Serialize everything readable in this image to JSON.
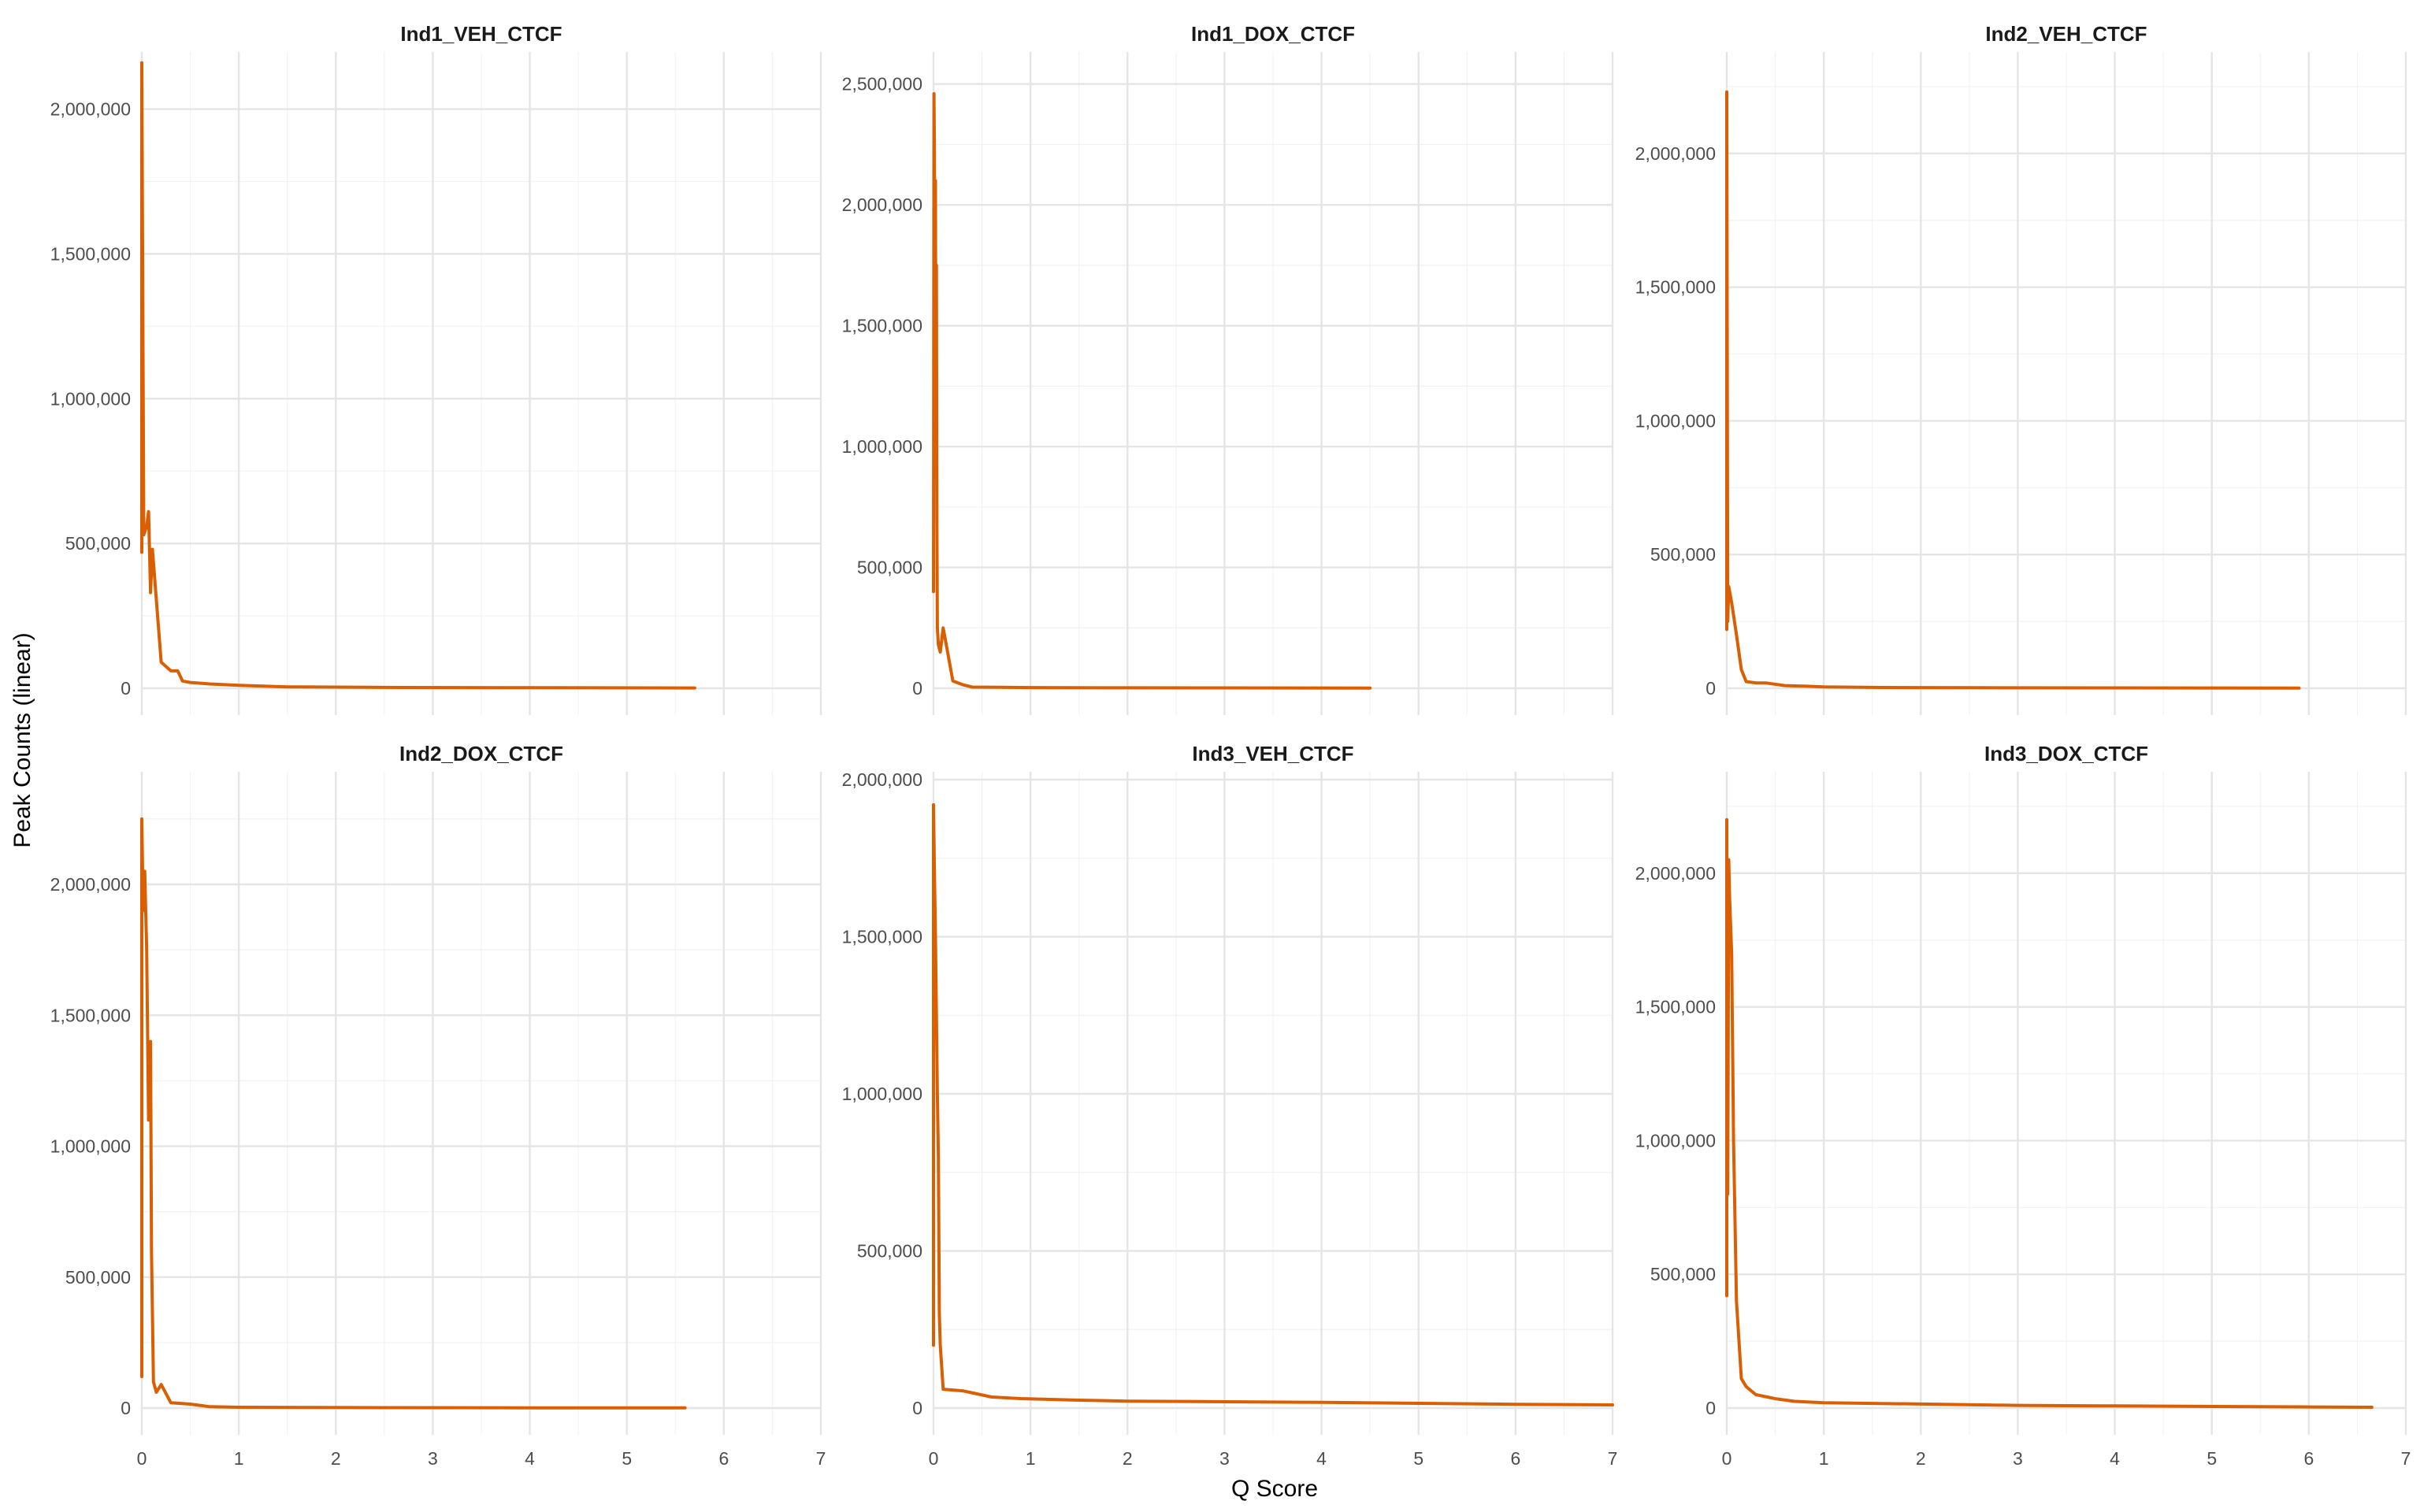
{
  "figure": {
    "xlabel": "Q Score",
    "ylabel": "Peak Counts (linear)",
    "line_color": "#D95F02"
  },
  "chart_data": [
    {
      "type": "line",
      "title": "Ind1_VEH_CTCF",
      "xlim": [
        0,
        7
      ],
      "ylim": [
        0,
        2170000
      ],
      "yticks": [
        0,
        500000,
        1000000,
        1500000,
        2000000
      ],
      "ytick_labels": [
        "0",
        "500,000",
        "1,000,000",
        "1,500,000",
        "2,000,000"
      ],
      "xticks": [
        0,
        1,
        2,
        3,
        4,
        5,
        6,
        7
      ],
      "show_x_tick_labels": false,
      "x": [
        0,
        0,
        0.02,
        0.05,
        0.07,
        0.09,
        0.11,
        0.2,
        0.3,
        0.37,
        0.42,
        0.5,
        0.7,
        1.0,
        1.5,
        2.5,
        4.0,
        5.7
      ],
      "y": [
        470000,
        2160000,
        530000,
        560000,
        610000,
        330000,
        480000,
        90000,
        60000,
        60000,
        25000,
        20000,
        15000,
        10000,
        5000,
        3000,
        2000,
        1000
      ]
    },
    {
      "type": "line",
      "title": "Ind1_DOX_CTCF",
      "xlim": [
        0,
        7
      ],
      "ylim": [
        0,
        2600000
      ],
      "yticks": [
        0,
        500000,
        1000000,
        1500000,
        2000000,
        2500000
      ],
      "ytick_labels": [
        "0",
        "500,000",
        "1,000,000",
        "1,500,000",
        "2,000,000",
        "2,500,000"
      ],
      "xticks": [
        0,
        1,
        2,
        3,
        4,
        5,
        6,
        7
      ],
      "show_x_tick_labels": false,
      "x": [
        0,
        0.005,
        0.01,
        0.015,
        0.02,
        0.025,
        0.03,
        0.035,
        0.04,
        0.05,
        0.07,
        0.1,
        0.2,
        0.3,
        0.4,
        1.0,
        2.0,
        3.0,
        4.5
      ],
      "y": [
        400000,
        2460000,
        2200000,
        950000,
        2100000,
        1000000,
        1750000,
        700000,
        250000,
        180000,
        150000,
        250000,
        30000,
        15000,
        5000,
        3000,
        2000,
        1500,
        1000
      ]
    },
    {
      "type": "line",
      "title": "Ind2_VEH_CTCF",
      "xlim": [
        0,
        7
      ],
      "ylim": [
        0,
        2350000
      ],
      "yticks": [
        0,
        500000,
        1000000,
        1500000,
        2000000
      ],
      "ytick_labels": [
        "0",
        "500,000",
        "1,000,000",
        "1,500,000",
        "2,000,000"
      ],
      "xticks": [
        0,
        1,
        2,
        3,
        4,
        5,
        6,
        7
      ],
      "show_x_tick_labels": false,
      "x": [
        0,
        0,
        0.01,
        0.02,
        0.05,
        0.1,
        0.15,
        0.2,
        0.3,
        0.4,
        0.6,
        0.8,
        1.0,
        1.6,
        2.5,
        4.0,
        5.9
      ],
      "y": [
        220000,
        2230000,
        250000,
        380000,
        320000,
        200000,
        70000,
        25000,
        20000,
        20000,
        10000,
        8000,
        5000,
        3000,
        2000,
        1500,
        1000
      ]
    },
    {
      "type": "line",
      "title": "Ind2_DOX_CTCF",
      "xlim": [
        0,
        7
      ],
      "ylim": [
        0,
        2400000
      ],
      "yticks": [
        0,
        500000,
        1000000,
        1500000,
        2000000
      ],
      "ytick_labels": [
        "0",
        "500,000",
        "1,000,000",
        "1,500,000",
        "2,000,000"
      ],
      "xticks": [
        0,
        1,
        2,
        3,
        4,
        5,
        6,
        7
      ],
      "show_x_tick_labels": true,
      "x": [
        0,
        0,
        0.015,
        0.03,
        0.05,
        0.07,
        0.09,
        0.1,
        0.12,
        0.15,
        0.2,
        0.3,
        0.5,
        0.7,
        1.0,
        1.8,
        2.5,
        4.0,
        5.6
      ],
      "y": [
        120000,
        2250000,
        1900000,
        2050000,
        1750000,
        1100000,
        1400000,
        600000,
        100000,
        60000,
        90000,
        20000,
        15000,
        5000,
        3000,
        2000,
        1500,
        1000,
        1000
      ]
    },
    {
      "type": "line",
      "title": "Ind3_VEH_CTCF",
      "xlim": [
        0,
        7
      ],
      "ylim": [
        0,
        2000000
      ],
      "yticks": [
        0,
        500000,
        1000000,
        1500000,
        2000000
      ],
      "ytick_labels": [
        "0",
        "500,000",
        "1,000,000",
        "1,500,000",
        "2,000,000"
      ],
      "xticks": [
        0,
        1,
        2,
        3,
        4,
        5,
        6,
        7
      ],
      "show_x_tick_labels": true,
      "x": [
        0,
        0,
        0.01,
        0.02,
        0.03,
        0.04,
        0.05,
        0.06,
        0.07,
        0.1,
        0.3,
        0.6,
        0.9,
        1.5,
        2.0,
        3.0,
        4.0,
        5.0,
        6.0,
        7.0
      ],
      "y": [
        200000,
        1920000,
        1700000,
        1500000,
        1250000,
        1000000,
        800000,
        300000,
        200000,
        60000,
        55000,
        35000,
        30000,
        25000,
        22000,
        20000,
        18000,
        15000,
        12000,
        10000
      ]
    },
    {
      "type": "line",
      "title": "Ind3_DOX_CTCF",
      "xlim": [
        0,
        7
      ],
      "ylim": [
        0,
        2350000
      ],
      "yticks": [
        0,
        500000,
        1000000,
        1500000,
        2000000
      ],
      "ytick_labels": [
        "0",
        "500,000",
        "1,000,000",
        "1,500,000",
        "2,000,000"
      ],
      "xticks": [
        0,
        1,
        2,
        3,
        4,
        5,
        6,
        7
      ],
      "show_x_tick_labels": true,
      "x": [
        0,
        0,
        0.01,
        0.02,
        0.03,
        0.05,
        0.07,
        0.1,
        0.15,
        0.2,
        0.3,
        0.5,
        0.7,
        1.0,
        2.0,
        3.0,
        4.0,
        5.0,
        6.0,
        6.65
      ],
      "y": [
        420000,
        2200000,
        800000,
        2050000,
        1900000,
        1700000,
        1000000,
        400000,
        110000,
        80000,
        50000,
        35000,
        25000,
        20000,
        15000,
        10000,
        8000,
        6000,
        4000,
        3000
      ]
    }
  ]
}
